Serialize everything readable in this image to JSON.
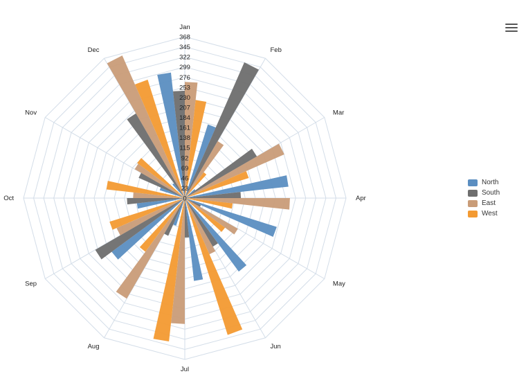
{
  "menu": {
    "icon": "hamburger-menu-icon"
  },
  "chart_data": {
    "type": "polar-bar",
    "title": "",
    "categories": [
      "Jan",
      "Feb",
      "Mar",
      "Apr",
      "May",
      "Jun",
      "Jul",
      "Aug",
      "Sep",
      "Oct",
      "Nov",
      "Dec"
    ],
    "radial_ticks": [
      "0",
      "23",
      "46",
      "69",
      "92",
      "115",
      "138",
      "161",
      "184",
      "207",
      "230",
      "253",
      "276",
      "299",
      "322",
      "345",
      "368"
    ],
    "rmax": 368,
    "grid": true,
    "legend_position": "right",
    "series": [
      {
        "name": "North",
        "color": "#5b8ec1",
        "values": [
          288,
          176,
          30,
          238,
          220,
          208,
          190,
          66,
          207,
          110,
          60,
          42
        ]
      },
      {
        "name": "South",
        "color": "#6e6e6e",
        "values": [
          245,
          338,
          190,
          128,
          40,
          128,
          90,
          94,
          236,
          132,
          115,
          223
        ]
      },
      {
        "name": "East",
        "color": "#c99c78",
        "values": [
          265,
          150,
          248,
          240,
          140,
          140,
          287,
          265,
          170,
          118,
          132,
          355
        ]
      },
      {
        "name": "West",
        "color": "#f39a32",
        "values": [
          225,
          73,
          153,
          110,
          114,
          327,
          329,
          152,
          180,
          180,
          135,
          283
        ]
      }
    ]
  }
}
